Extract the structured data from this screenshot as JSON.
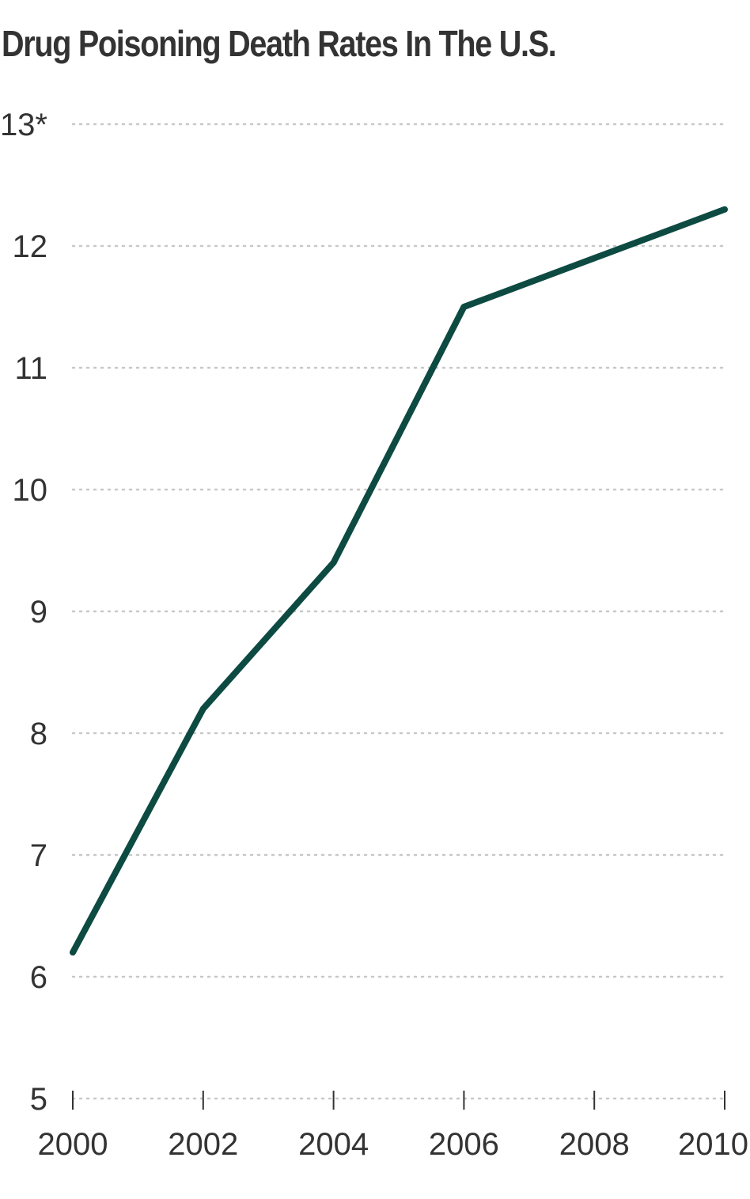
{
  "chart_data": {
    "type": "line",
    "title": "Drug Poisoning Death Rates In The U.S.",
    "xlabel": "",
    "ylabel": "",
    "x": [
      2000,
      2002,
      2004,
      2006,
      2008,
      2010
    ],
    "y_tick_labels": [
      "5",
      "6",
      "7",
      "8",
      "9",
      "10",
      "11",
      "12",
      "13*"
    ],
    "y_ticks": [
      5,
      6,
      7,
      8,
      9,
      10,
      11,
      12,
      13
    ],
    "x_tick_labels": [
      "2000",
      "2002",
      "2004",
      "2006",
      "2008",
      "2010"
    ],
    "ylim": [
      5,
      13
    ],
    "xlim": [
      2000,
      2010
    ],
    "grid": "horizontal dotted",
    "series": [
      {
        "values": [
          6.2,
          8.2,
          9.4,
          11.5,
          11.9,
          12.3
        ]
      }
    ],
    "colors": {
      "line": "#0d4a42",
      "grid": "#c8c8c8",
      "text": "#333333",
      "axis": "#333333"
    }
  }
}
